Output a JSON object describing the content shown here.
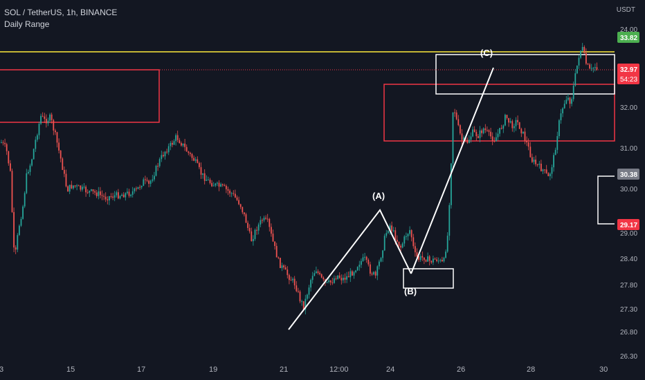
{
  "header": {
    "title": "SOL / TetherUS, 1h, BINANCE",
    "indicator": "Daily Range"
  },
  "price_axis": {
    "unit": "USDT",
    "ticks": [
      "24.00",
      "32.00",
      "31.00",
      "30.00",
      "29.00",
      "28.40",
      "27.80",
      "27.30",
      "26.80",
      "26.30"
    ]
  },
  "time_axis": {
    "ticks": [
      "3",
      "15",
      "17",
      "19",
      "21",
      "12:00",
      "24",
      "26",
      "28",
      "30"
    ]
  },
  "price_tags": [
    {
      "name": "yellow-level-tag",
      "text": "33.82",
      "color": "#4caf50"
    },
    {
      "name": "last-price-tag",
      "text": "32.97",
      "color": "#f23645"
    },
    {
      "name": "countdown-tag",
      "text": "54:23",
      "color": "#f23645"
    },
    {
      "name": "range-high-tag",
      "text": "30.38",
      "color": "#787b86"
    },
    {
      "name": "range-low-tag",
      "text": "29.17",
      "color": "#f23645"
    }
  ],
  "wave_labels": {
    "a": "(A)",
    "b": "(B)",
    "c": "(C)"
  },
  "colors": {
    "background": "#131722",
    "bull": "#26a69a",
    "bear": "#ef5350",
    "resistance_line": "#ffeb3b",
    "zone_red": "#f23645",
    "zone_white": "#ffffff"
  }
}
